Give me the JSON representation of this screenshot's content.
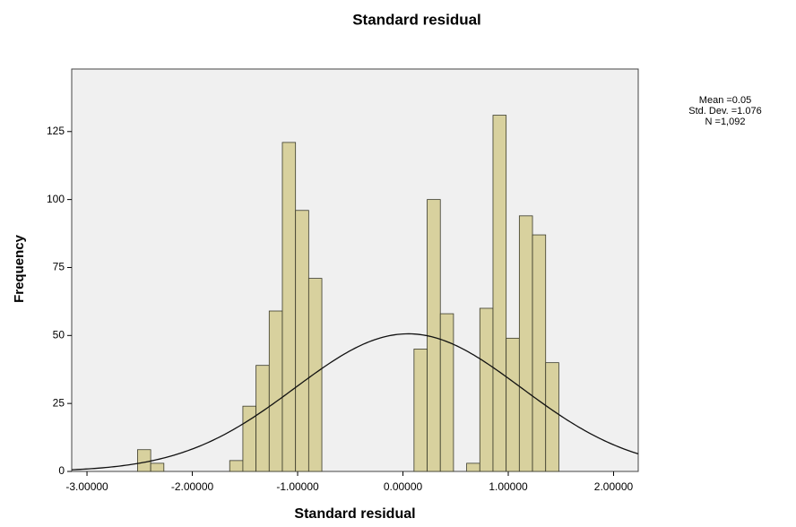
{
  "chart_data": {
    "type": "histogram",
    "title": "Standard residual",
    "xlabel": "Standard residual",
    "ylabel": "Frequency",
    "bins": [
      -2.52,
      -2.395,
      -2.27,
      -2.145,
      -2.02,
      -1.895,
      -1.77,
      -1.645,
      -1.52,
      -1.395,
      -1.27,
      -1.145,
      -1.02,
      -0.895,
      -0.77,
      -0.645,
      -0.52,
      -0.395,
      -0.27,
      -0.145,
      -0.02,
      0.105,
      0.23,
      0.355,
      0.48,
      0.605,
      0.73,
      0.855,
      0.98,
      1.105,
      1.23,
      1.355,
      1.48
    ],
    "values": [
      8,
      3,
      0,
      0,
      0,
      0,
      0,
      4,
      24,
      39,
      59,
      121,
      96,
      71,
      0,
      0,
      0,
      0,
      0,
      0,
      0,
      45,
      100,
      58,
      0,
      3,
      60,
      131,
      49,
      94,
      87,
      40
    ],
    "color": "#d8d19e",
    "xlim": [
      -3.145,
      2.234
    ],
    "ylim": [
      0,
      148
    ],
    "xticks": [
      {
        "value": -3,
        "label": "-3.00000"
      },
      {
        "value": -2,
        "label": "-2.00000"
      },
      {
        "value": -1,
        "label": "-1.00000"
      },
      {
        "value": 0,
        "label": "0.00000"
      },
      {
        "value": 1,
        "label": "1.00000"
      },
      {
        "value": 2,
        "label": "2.00000"
      }
    ],
    "yticks": [
      0,
      25,
      50,
      75,
      100,
      125
    ],
    "stats": [
      {
        "value": 0.05,
        "label": "Mean =0.05"
      },
      {
        "value": 1.076,
        "label": "Std. Dev. =1.076"
      },
      {
        "value": 1092,
        "label": "N =1,092"
      }
    ]
  }
}
